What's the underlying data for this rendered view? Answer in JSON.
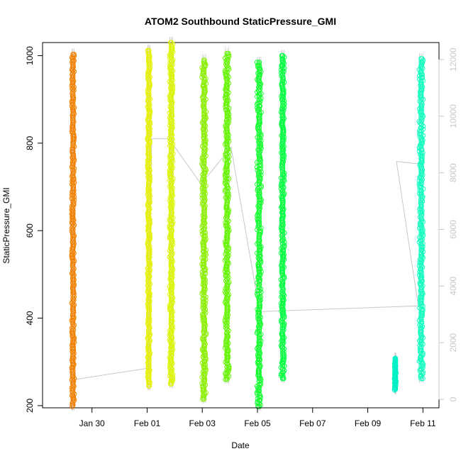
{
  "chart_data": {
    "type": "scatter",
    "title": "ATOM2 Southbound StaticPressure_GMI",
    "xlabel": "Date",
    "ylabel": "StaticPressure_GMI",
    "x_ticks": [
      "Jan 30",
      "Feb 01",
      "Feb 03",
      "Feb 05",
      "Feb 07",
      "Feb 09",
      "Feb 11"
    ],
    "y_left": {
      "lim": [
        195,
        1030
      ],
      "ticks": [
        200,
        400,
        600,
        800,
        1000
      ]
    },
    "y_right": {
      "lim": [
        -300,
        12600
      ],
      "ticks": [
        0,
        2000,
        4000,
        6000,
        8000,
        10000,
        12000
      ],
      "color": "#c8c8c8"
    },
    "grid": false,
    "legend": "none",
    "series": [
      {
        "x_start": "Jan 29 06:00",
        "x_end": "Jan 29 09:00",
        "y_min": 198,
        "y_max": 1003,
        "color": "#f28000",
        "marker": "open-circle"
      },
      {
        "x_start": "Feb 01 00:00",
        "x_end": "Feb 01 03:00",
        "y_min": 245,
        "y_max": 1012,
        "color": "#e6f000",
        "marker": "open-circle"
      },
      {
        "x_start": "Feb 01 19:00",
        "x_end": "Feb 01 23:00",
        "y_min": 250,
        "y_max": 1030,
        "color": "#dcf500",
        "marker": "open-circle"
      },
      {
        "x_start": "Feb 02 23:00",
        "x_end": "Feb 03 04:00",
        "y_min": 215,
        "y_max": 990,
        "color": "#8cf000",
        "marker": "open-circle"
      },
      {
        "x_start": "Feb 03 19:00",
        "x_end": "Feb 04 00:00",
        "y_min": 260,
        "y_max": 1005,
        "color": "#64f500",
        "marker": "open-circle"
      },
      {
        "x_start": "Feb 04 23:00",
        "x_end": "Feb 05 04:00",
        "y_min": 198,
        "y_max": 985,
        "color": "#14ff30",
        "marker": "open-circle"
      },
      {
        "x_start": "Feb 05 20:00",
        "x_end": "Feb 06 00:00",
        "y_min": 262,
        "y_max": 1000,
        "color": "#00ff40",
        "marker": "open-circle"
      },
      {
        "x_start": "Feb 09 23:00",
        "x_end": "Feb 10 01:00",
        "y_min": 236,
        "y_max": 308,
        "color": "#00f0c8",
        "marker": "open-circle"
      },
      {
        "x_start": "Feb 10 20:00",
        "x_end": "Feb 11 01:00",
        "y_min": 262,
        "y_max": 993,
        "color": "#10ffc0",
        "marker": "open-circle"
      }
    ],
    "right_axis_line": {
      "color": "#c8c8c8",
      "description": "secondary series drawn as thin grey line",
      "points": [
        [
          "Jan 29 09:00",
          700
        ],
        [
          "Feb 01 01:00",
          1100
        ],
        [
          "Feb 01 04:00",
          9200
        ],
        [
          "Feb 01 19:00",
          9200
        ],
        [
          "Feb 02 23:00",
          7600
        ],
        [
          "Feb 04 01:00",
          8900
        ],
        [
          "Feb 05 02:00",
          3100
        ],
        [
          "Feb 10 20:00",
          3300
        ],
        [
          "Feb 10 01:00",
          8400
        ],
        [
          "Feb 11 01:00",
          8300
        ]
      ]
    }
  }
}
